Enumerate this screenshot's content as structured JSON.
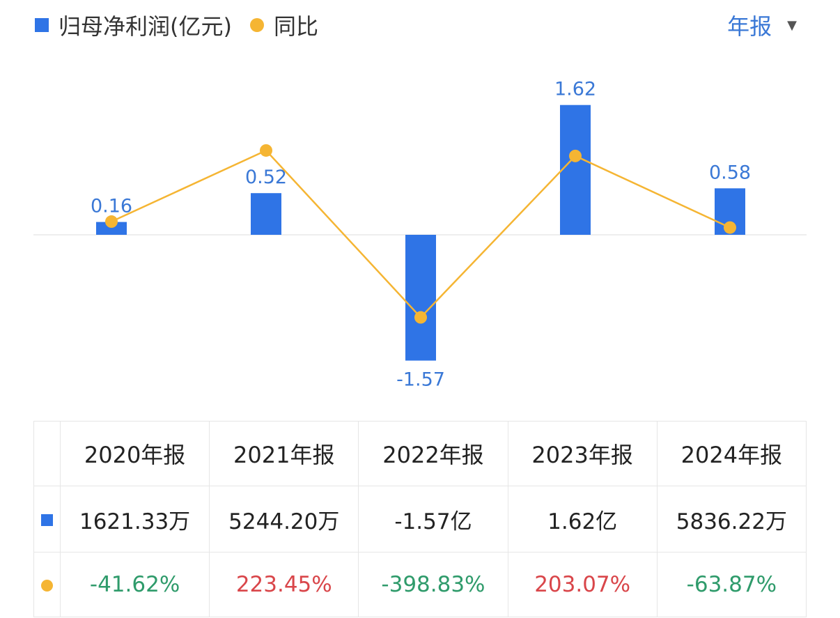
{
  "legend": {
    "bar_label": "归母净利润(亿元)",
    "line_label": "同比"
  },
  "period_selector": {
    "label": "年报"
  },
  "colors": {
    "bar": "#2f74e6",
    "line": "#f5b533",
    "label": "#3a78d6",
    "positive": "#d9464a",
    "negative": "#2f9b6b"
  },
  "chart_data": {
    "type": "bar",
    "categories": [
      "2020年报",
      "2021年报",
      "2022年报",
      "2023年报",
      "2024年报"
    ],
    "series": [
      {
        "name": "归母净利润(亿元)",
        "type": "bar",
        "values": [
          0.16,
          0.52,
          -1.57,
          1.62,
          0.58
        ],
        "labels": [
          "0.16",
          "0.52",
          "-1.57",
          "1.62",
          "0.58"
        ]
      },
      {
        "name": "同比",
        "type": "line",
        "unit": "%",
        "values": [
          -41.62,
          223.45,
          -398.83,
          203.07,
          -63.87
        ]
      }
    ],
    "grid": false,
    "legend_position": "top-left"
  },
  "table": {
    "headers": [
      "2020年报",
      "2021年报",
      "2022年报",
      "2023年报",
      "2024年报"
    ],
    "values": [
      "1621.33万",
      "5244.20万",
      "-1.57亿",
      "1.62亿",
      "5836.22万"
    ],
    "yoy": [
      "-41.62%",
      "223.45%",
      "-398.83%",
      "203.07%",
      "-63.87%"
    ],
    "yoy_sign": [
      "neg",
      "pos",
      "neg",
      "pos",
      "neg"
    ]
  }
}
